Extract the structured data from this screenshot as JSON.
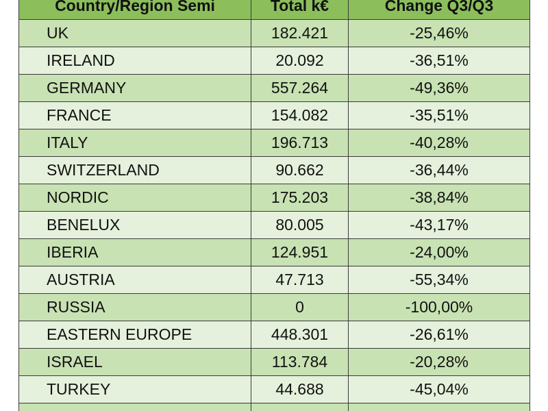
{
  "table": {
    "header": [
      "Country/Region Semi",
      "Total k€",
      "Change Q3/Q3"
    ],
    "rows": [
      [
        "UK",
        "182.421",
        "-25,46%"
      ],
      [
        "IRELAND",
        "20.092",
        "-36,51%"
      ],
      [
        "GERMANY",
        "557.264",
        "-49,36%"
      ],
      [
        "FRANCE",
        "154.082",
        "-35,51%"
      ],
      [
        "ITALY",
        "196.713",
        "-40,28%"
      ],
      [
        "SWITZERLAND",
        "90.662",
        "-36,44%"
      ],
      [
        "NORDIC",
        "175.203",
        "-38,84%"
      ],
      [
        "BENELUX",
        "80.005",
        "-43,17%"
      ],
      [
        "IBERIA",
        "124.951",
        "-24,00%"
      ],
      [
        "AUSTRIA",
        "47.713",
        "-55,34%"
      ],
      [
        "RUSSIA",
        "0",
        "-100,00%"
      ],
      [
        "EASTERN EUROPE",
        "448.301",
        "-26,61%"
      ],
      [
        "ISRAEL",
        "113.784",
        "-20,28%"
      ],
      [
        "TURKEY",
        "44.688",
        "-45,04%"
      ]
    ]
  }
}
